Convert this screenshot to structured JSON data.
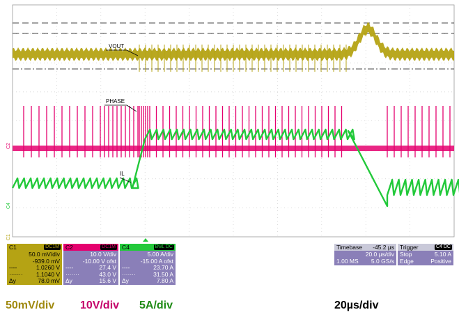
{
  "colors": {
    "ch1": "#b5a314",
    "ch2": "#e5006e",
    "ch4": "#22c93a",
    "panel": "#8a7fb8"
  },
  "labels": {
    "vout": "VOUT",
    "phase": "PHASE",
    "il": "IL",
    "marker_c1": "C1",
    "marker_c2": "C2",
    "marker_c4": "C4"
  },
  "c1": {
    "name": "C1",
    "badge": "DC1M",
    "scale": "50.0 mV/div",
    "offset": "-939.0 mV",
    "cursor1": "1.0260 V",
    "cursor2": "1.1040 V",
    "dy_label": "Δy",
    "dy": "78.0 mV"
  },
  "c2": {
    "name": "C2",
    "badge": "DC1M",
    "scale": "10.0 V/div",
    "offset": "-10.00 V ofst",
    "cursor1": "27.4 V",
    "cursor2": "43.0 V",
    "dy_label": "Δy",
    "dy": "15.6 V"
  },
  "c4": {
    "name": "C4",
    "badge": "BwL DC",
    "scale": "5.00 A/div",
    "offset": "-15.00 A ofst",
    "cursor1": "23.70 A",
    "cursor2": "31.50 A",
    "dy_label": "Δy",
    "dy": "7.80 A"
  },
  "timebase": {
    "label": "Timebase",
    "delay": "-45.2 µs",
    "div": "20.0 µs/div",
    "samples": "1.00 MS",
    "rate": "5.0 GS/s"
  },
  "trigger": {
    "label": "Trigger",
    "badge": "C4 DC",
    "mode": "Stop",
    "level": "5.10 A",
    "type": "Edge",
    "slope": "Positive"
  },
  "captions": {
    "ch1_scale": "50mV/div",
    "ch2_scale": "10V/div",
    "ch4_scale": "5A/div",
    "time_scale": "20µs/div"
  }
}
